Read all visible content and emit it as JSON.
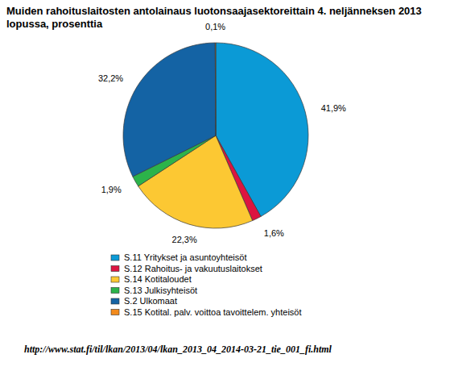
{
  "chart_data": {
    "type": "pie",
    "title": "Muiden rahoituslaitosten antolainaus luotonsaajasektoreittain 4. neljänneksen 2013 lopussa, prosenttia",
    "categories": [
      "S.11 Yritykset ja asuntoyhteisöt",
      "S.12 Rahoitus- ja vakuutuslaitokset",
      "S.14 Kotitaloudet",
      "S.13 Julkisyhteisöt",
      "S.2 Ulkomaat",
      "S.15 Kotital. palv. voittoa tavoittelem. yhteisöt"
    ],
    "values": [
      41.9,
      1.6,
      22.3,
      1.9,
      32.2,
      0.1
    ],
    "value_labels": [
      "41,9%",
      "1,6%",
      "22,3%",
      "1,9%",
      "32,2%",
      "0,1%"
    ],
    "colors": [
      "#0b9ad6",
      "#dc1440",
      "#fcc833",
      "#2cb34a",
      "#1463a4",
      "#f28a1c"
    ],
    "data_labels": true,
    "legend": "bottom",
    "annotations": [
      "http://www.stat.fi/til/lkan/2013/04/lkan_2013_04_2014-03-21_tie_001_fi.html"
    ]
  }
}
